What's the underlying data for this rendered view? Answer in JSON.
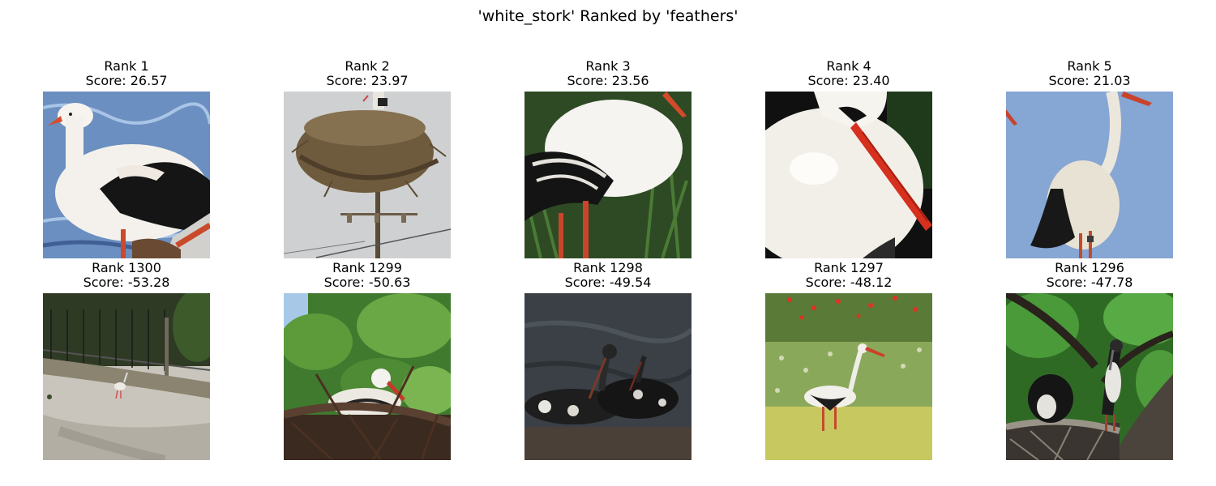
{
  "figure": {
    "title": "'white_stork' Ranked by 'feathers'"
  },
  "top_row": [
    {
      "rank": "Rank 1",
      "score": "Score: 26.57",
      "image": "stork-plumage-closeup-on-water"
    },
    {
      "rank": "Rank 2",
      "score": "Score: 23.97",
      "image": "stork-on-nest-atop-pole"
    },
    {
      "rank": "Rank 3",
      "score": "Score: 23.56",
      "image": "stork-white-body-black-wings-in-grass"
    },
    {
      "rank": "Rank 4",
      "score": "Score: 23.40",
      "image": "stork-head-red-beak-closeup"
    },
    {
      "rank": "Rank 5",
      "score": "Score: 21.03",
      "image": "stork-standing-against-blue-sky"
    }
  ],
  "bottom_row": [
    {
      "rank": "Rank 1300",
      "score": "Score: -53.28",
      "image": "distant-stork-in-enclosure"
    },
    {
      "rank": "Rank 1299",
      "score": "Score: -50.63",
      "image": "stork-in-nest-among-leaves"
    },
    {
      "rank": "Rank 1298",
      "score": "Score: -49.54",
      "image": "two-dark-muddy-storks-in-water"
    },
    {
      "rank": "Rank 1297",
      "score": "Score: -48.12",
      "image": "stork-in-flower-meadow"
    },
    {
      "rank": "Rank 1296",
      "score": "Score: -47.78",
      "image": "storks-on-nest-in-tree"
    }
  ]
}
